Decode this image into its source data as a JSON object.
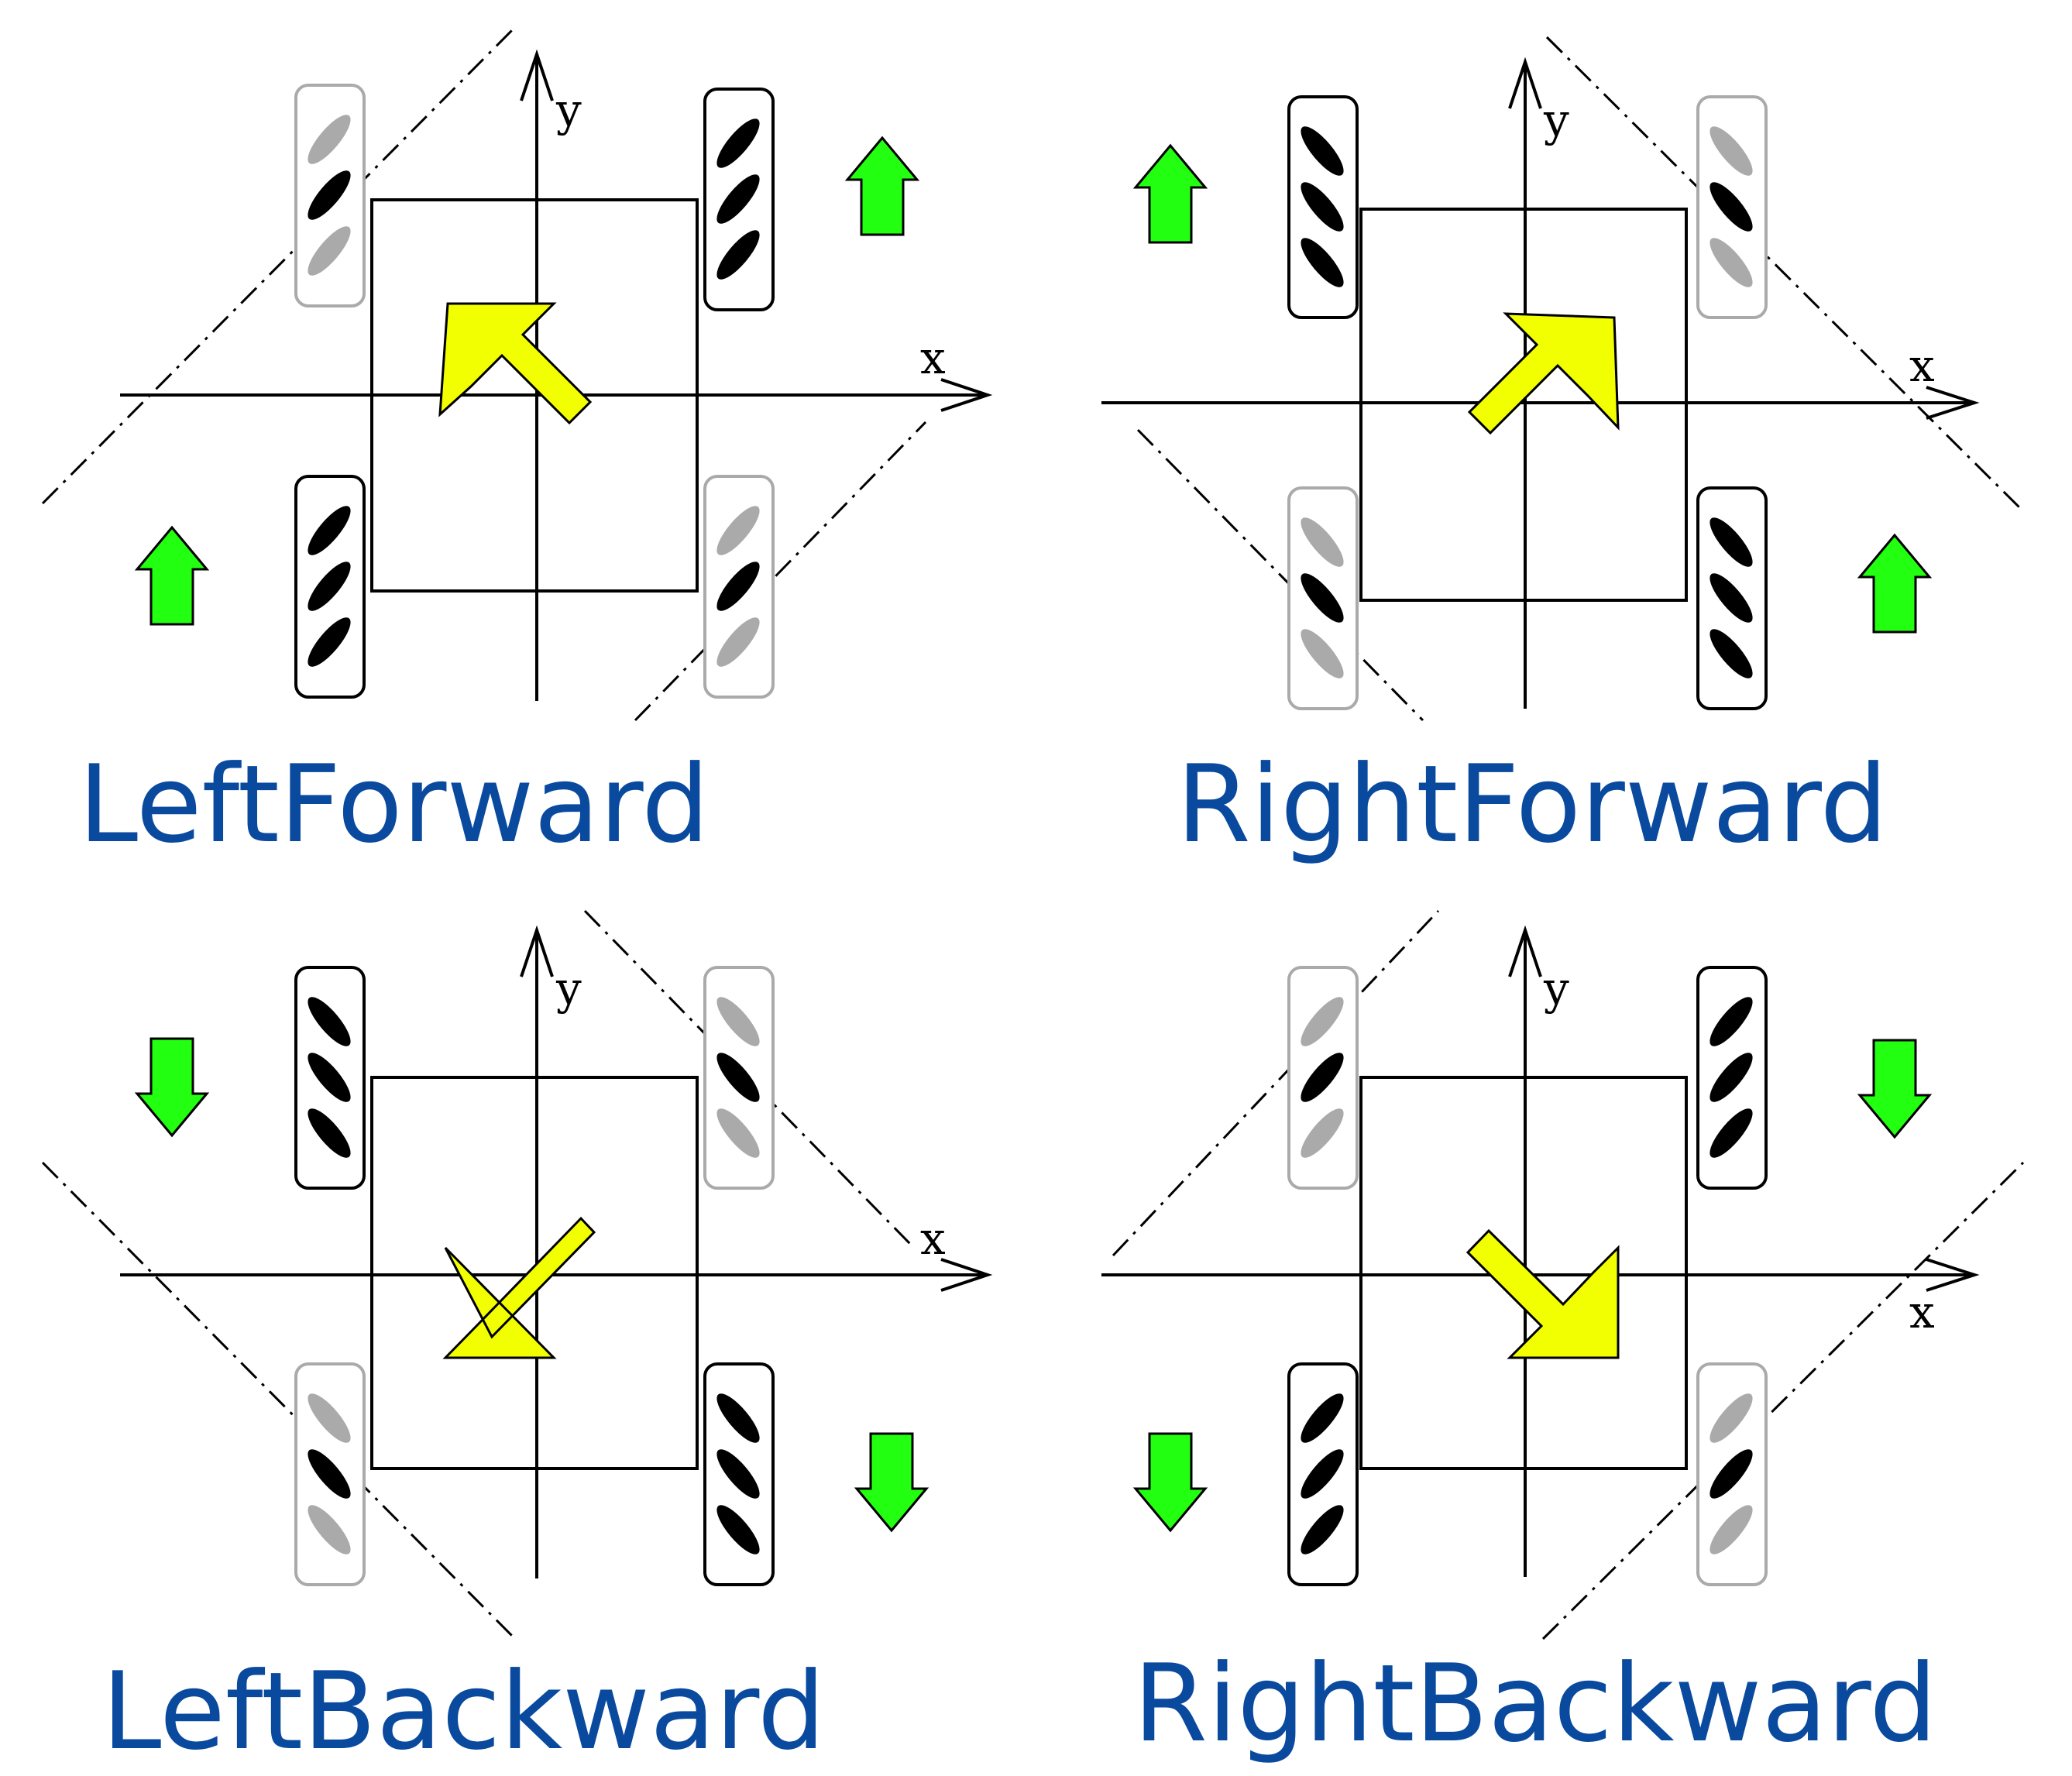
{
  "panels": [
    {
      "id": "left-forward",
      "title": "LeftForward",
      "motion_arrow": "up-left",
      "wheel_arrows": "up",
      "active_wheels": [
        "front-right",
        "rear-left"
      ]
    },
    {
      "id": "right-forward",
      "title": "RightForward",
      "motion_arrow": "up-right",
      "wheel_arrows": "up",
      "active_wheels": [
        "front-left",
        "rear-right"
      ]
    },
    {
      "id": "left-backward",
      "title": "LeftBackward",
      "motion_arrow": "down-left",
      "wheel_arrows": "down",
      "active_wheels": [
        "front-left",
        "rear-right"
      ]
    },
    {
      "id": "right-backward",
      "title": "RightBackward",
      "motion_arrow": "down-right",
      "wheel_arrows": "down",
      "active_wheels": [
        "front-right",
        "rear-left"
      ]
    }
  ],
  "axes": {
    "x_label": "x",
    "y_label": "y"
  },
  "colors": {
    "caption": "#0a4a9e",
    "motion_arrow": "#f2ff00",
    "wheel_arrow": "#22ff11",
    "active_wheel": "#000000",
    "inactive_wheel": "#aaaaaa"
  }
}
